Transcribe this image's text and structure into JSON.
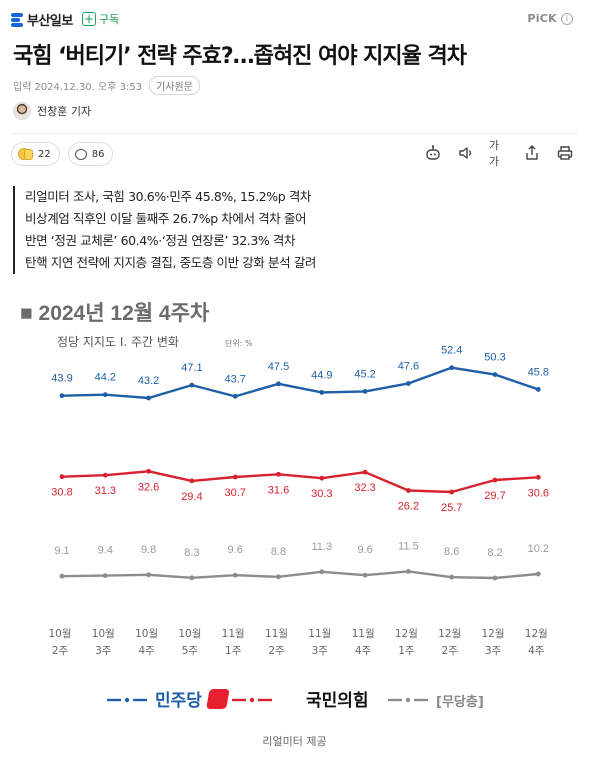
{
  "topbar": {
    "publisher": "부산일보",
    "subscribe_label": "구독",
    "pick_label": "PiCK",
    "pick_info": "i"
  },
  "article": {
    "headline": "국힘 ‘버티기’ 전략 주효?…좁혀진 여야 지지율 격차",
    "date_label": "입력",
    "date": "2024.12.30. 오후 3:53",
    "original_label": "기사원문",
    "reporter": "전창훈 기자"
  },
  "actions": {
    "reaction_count": "22",
    "comment_count": "86",
    "text_size_label": "가가"
  },
  "summary": [
    "리얼미터 조사, 국힘 30.6%·민주 45.8%, 15.2%p 격차",
    "비상계엄 직후인 이달 둘째주 26.7%p 차에서 격차 줄어",
    "반면 ‘정권 교체론’ 60.4%·‘정권 연장론’ 32.3% 격차",
    "탄핵 지연 전략에 지지층 결집, 중도층 이반 강화 분석 갈려"
  ],
  "chart_data": {
    "type": "line",
    "title": "■ 2024년 12월 4주차",
    "subtitle": "정당 지지도 Ⅰ. 주간 변화",
    "unit": "단위: %",
    "categories": [
      [
        "10월",
        "2주"
      ],
      [
        "10월",
        "3주"
      ],
      [
        "10월",
        "4주"
      ],
      [
        "10월",
        "5주"
      ],
      [
        "11월",
        "1주"
      ],
      [
        "11월",
        "2주"
      ],
      [
        "11월",
        "3주"
      ],
      [
        "11월",
        "4주"
      ],
      [
        "12월",
        "1주"
      ],
      [
        "12월",
        "2주"
      ],
      [
        "12월",
        "3주"
      ],
      [
        "12월",
        "4주"
      ]
    ],
    "series": [
      {
        "name": "민주당",
        "color": "#1f5fa8",
        "values": [
          43.9,
          44.2,
          43.2,
          47.1,
          43.7,
          47.5,
          44.9,
          45.2,
          47.6,
          52.4,
          50.3,
          45.8
        ]
      },
      {
        "name": "국민의힘",
        "color": "#d6232f",
        "values": [
          30.8,
          31.3,
          32.6,
          29.4,
          30.7,
          31.6,
          30.3,
          32.3,
          26.2,
          25.7,
          29.7,
          30.6
        ]
      },
      {
        "name": "무당층",
        "color": "#8c8c8c",
        "values": [
          9.1,
          9.4,
          9.8,
          8.3,
          9.6,
          8.8,
          11.3,
          9.6,
          11.5,
          8.6,
          8.2,
          10.2
        ]
      }
    ],
    "legend": [
      "민주당",
      "국민의힘",
      "[무당층]"
    ],
    "legend_position": "bottom",
    "grid": false
  },
  "caption": "리얼미터 제공"
}
